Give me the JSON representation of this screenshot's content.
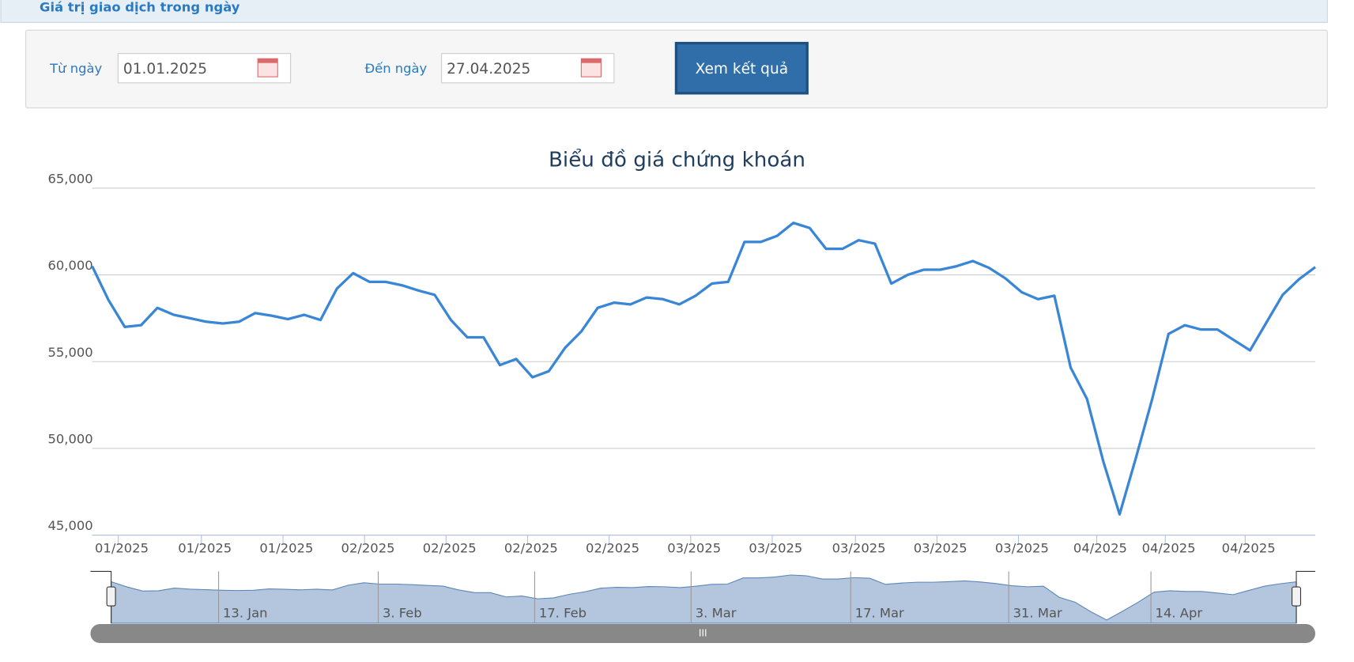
{
  "header": {
    "title": "Giá trị giao dịch trong ngày"
  },
  "form": {
    "from_label": "Từ ngày",
    "from_value": "01.01.2025",
    "to_label": "Đến ngày",
    "to_value": "27.04.2025",
    "button": "Xem kết quả"
  },
  "chart_data": {
    "type": "line",
    "title": "Biểu đồ giá chứng khoán",
    "values": [
      60500,
      58550,
      57000,
      57100,
      58100,
      57700,
      57500,
      57300,
      57200,
      57300,
      57800,
      57650,
      57450,
      57700,
      57400,
      59200,
      60100,
      59600,
      59600,
      59400,
      59100,
      58850,
      57400,
      56400,
      56400,
      54800,
      55150,
      54100,
      54450,
      55800,
      56750,
      58100,
      58400,
      58300,
      58700,
      58600,
      58300,
      58800,
      59500,
      59600,
      61900,
      61900,
      62250,
      63000,
      62700,
      61500,
      61500,
      62000,
      61800,
      59500,
      60000,
      60300,
      60300,
      60500,
      60800,
      60400,
      59800,
      59000,
      58600,
      58800,
      54650,
      52850,
      49250,
      46200,
      49450,
      52850,
      56600,
      57100,
      56850,
      56850,
      56250,
      55650,
      57250,
      58850,
      59750,
      60450
    ],
    "color": "#3a86d6",
    "ylim": [
      45000,
      65000
    ],
    "yticks": [
      {
        "value": 45000,
        "label": "45,000"
      },
      {
        "value": 50000,
        "label": "50,000"
      },
      {
        "value": 55000,
        "label": "55,000"
      },
      {
        "value": 60000,
        "label": "60,000"
      },
      {
        "value": 65000,
        "label": "65,000"
      }
    ],
    "grid": true,
    "xlim": [
      0,
      75
    ],
    "xticks": [
      {
        "value": 1.6,
        "label": "01/2025"
      },
      {
        "value": 6.7,
        "label": "01/2025"
      },
      {
        "value": 11.7,
        "label": "01/2025"
      },
      {
        "value": 16.7,
        "label": "02/2025"
      },
      {
        "value": 21.7,
        "label": "02/2025"
      },
      {
        "value": 26.7,
        "label": "02/2025"
      },
      {
        "value": 31.7,
        "label": "02/2025"
      },
      {
        "value": 36.7,
        "label": "03/2025"
      },
      {
        "value": 41.7,
        "label": "03/2025"
      },
      {
        "value": 46.8,
        "label": "03/2025"
      },
      {
        "value": 51.8,
        "label": "03/2025"
      },
      {
        "value": 56.8,
        "label": "03/2025"
      },
      {
        "value": 61.6,
        "label": "04/2025"
      },
      {
        "value": 65.8,
        "label": "04/2025"
      },
      {
        "value": 70.7,
        "label": "04/2025"
      }
    ],
    "navigator_ticks": [
      {
        "value": 6.8,
        "label": "13. Jan"
      },
      {
        "value": 16.9,
        "label": "3. Feb"
      },
      {
        "value": 26.8,
        "label": "17. Feb"
      },
      {
        "value": 36.7,
        "label": "3. Mar"
      },
      {
        "value": 46.8,
        "label": "17. Mar"
      },
      {
        "value": 56.8,
        "label": "31. Mar"
      },
      {
        "value": 65.8,
        "label": "14. Apr"
      }
    ]
  }
}
